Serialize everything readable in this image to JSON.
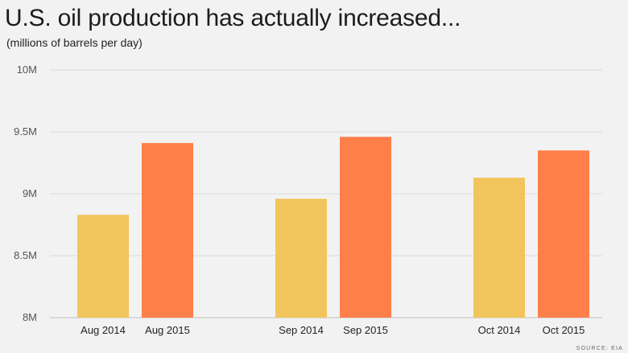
{
  "header": {
    "title": "U.S. oil production has actually increased...",
    "subtitle": "(millions of barrels per day)"
  },
  "source": "SOURCE: EIA",
  "chart_data": {
    "type": "bar",
    "title": "U.S. oil production has actually increased...",
    "subtitle": "(millions of barrels per day)",
    "xlabel": "",
    "ylabel": "",
    "ylim": [
      8,
      10
    ],
    "yticks": [
      8,
      8.5,
      9,
      9.5,
      10
    ],
    "ytick_labels": [
      "8M",
      "8.5M",
      "9M",
      "9.5M",
      "10M"
    ],
    "grid": true,
    "legend": "none",
    "colors": {
      "2014": "#f2c55c",
      "2015": "#ff7f4a",
      "grid": "#d9d9d9",
      "axis": "#bdbdbd"
    },
    "groups": [
      {
        "bars": [
          {
            "label": "Aug 2014",
            "value": 8.83,
            "series": "2014"
          },
          {
            "label": "Aug 2015",
            "value": 9.41,
            "series": "2015"
          }
        ]
      },
      {
        "bars": [
          {
            "label": "Sep 2014",
            "value": 8.96,
            "series": "2014"
          },
          {
            "label": "Sep 2015",
            "value": 9.46,
            "series": "2015"
          }
        ]
      },
      {
        "bars": [
          {
            "label": "Oct 2014",
            "value": 9.13,
            "series": "2014"
          },
          {
            "label": "Oct 2015",
            "value": 9.35,
            "series": "2015"
          }
        ]
      }
    ]
  }
}
